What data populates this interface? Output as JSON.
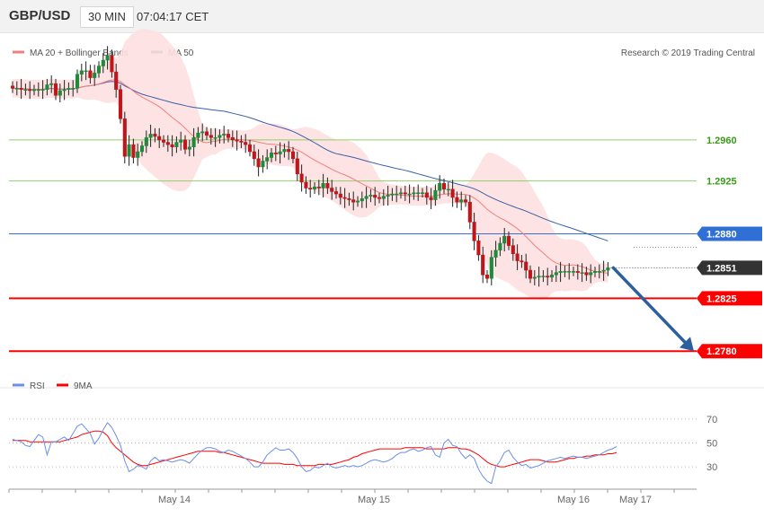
{
  "header": {
    "pair": "GBP/USD",
    "timeframe": "30 MIN",
    "time": "07:04:17 CET"
  },
  "legend": {
    "ma20_bb": "MA 20 + Bollinger Bands",
    "ma50": "MA 50",
    "research": "Research © 2019 Trading Central",
    "rsi": "RSI",
    "rsi_ma": "9MA"
  },
  "colors": {
    "ma20": "#f08080",
    "bands": "#fde0e0",
    "ma50": "#3a5fa8",
    "support": "#ff0000",
    "resistance": "#8fd06a",
    "pivot": "#3a6fd0",
    "arrow": "#2b5f9e",
    "rsi": "#6a8fe8",
    "rsi_ma": "#ff0000"
  },
  "chart_data": [
    {
      "type": "candlestick",
      "title": "GBP/USD",
      "timeframe": "30 MIN",
      "x_ticks": [
        "May 14",
        "May 15",
        "May 16",
        "May 17"
      ],
      "y_unit": "price",
      "ylim": [
        1.2758,
        1.3015
      ],
      "last_price": 1.2851,
      "series": [
        {
          "name": "MA 20 + Bollinger Bands"
        },
        {
          "name": "MA 50"
        }
      ],
      "levels": [
        {
          "value": 1.296,
          "label": "1.2960",
          "kind": "resistance"
        },
        {
          "value": 1.2925,
          "label": "1.2925",
          "kind": "resistance"
        },
        {
          "value": 1.288,
          "label": "1.2880",
          "kind": "pivot"
        },
        {
          "value": 1.2851,
          "label": "1.2851",
          "kind": "last"
        },
        {
          "value": 1.2825,
          "label": "1.2825",
          "kind": "support"
        },
        {
          "value": 1.278,
          "label": "1.2780",
          "kind": "support"
        }
      ],
      "forecast_arrow": {
        "from": 1.2851,
        "to": 1.278
      },
      "close": [
        1.3004,
        1.3004,
        1.3003,
        1.3003,
        1.3002,
        1.3003,
        1.3003,
        1.3003,
        1.3007,
        1.3008,
        1.2998,
        1.3002,
        1.3003,
        1.3004,
        1.3004,
        1.3016,
        1.3019,
        1.3019,
        1.3013,
        1.3017,
        1.3023,
        1.3028,
        1.3032,
        1.3018,
        1.3003,
        1.2978,
        1.2946,
        1.2956,
        1.2945,
        1.295,
        1.2955,
        1.2962,
        1.2965,
        1.2963,
        1.296,
        1.2958,
        1.2956,
        1.2954,
        1.2958,
        1.296,
        1.2952,
        1.2954,
        1.2962,
        1.2966,
        1.2967,
        1.2964,
        1.2962,
        1.2962,
        1.2964,
        1.2965,
        1.2962,
        1.296,
        1.2959,
        1.2958,
        1.2956,
        1.295,
        1.2944,
        1.2937,
        1.2942,
        1.2945,
        1.2949,
        1.2948,
        1.295,
        1.2952,
        1.295,
        1.2944,
        1.2931,
        1.2924,
        1.2919,
        1.2918,
        1.292,
        1.2919,
        1.2923,
        1.2919,
        1.2916,
        1.2914,
        1.2911,
        1.291,
        1.2909,
        1.2907,
        1.2908,
        1.291,
        1.2912,
        1.2913,
        1.2911,
        1.291,
        1.2912,
        1.2913,
        1.2914,
        1.2914,
        1.2915,
        1.2914,
        1.2914,
        1.2915,
        1.2915,
        1.2915,
        1.2911,
        1.2909,
        1.2917,
        1.2923,
        1.2918,
        1.2918,
        1.2911,
        1.2907,
        1.2909,
        1.2907,
        1.289,
        1.2874,
        1.2862,
        1.2845,
        1.2842,
        1.286,
        1.2866,
        1.2872,
        1.2878,
        1.287,
        1.2863,
        1.2857,
        1.2856,
        1.2849,
        1.2842,
        1.2843,
        1.2844,
        1.2844,
        1.2843,
        1.2845,
        1.2847,
        1.2848,
        1.2848,
        1.2848,
        1.2848,
        1.2847,
        1.2847,
        1.2845,
        1.2847,
        1.2848,
        1.2848,
        1.2849,
        1.2851
      ]
    },
    {
      "type": "line",
      "x_ticks": [
        "May 14",
        "May 15",
        "May 16",
        "May 17"
      ],
      "ylim": [
        15,
        85
      ],
      "y_ticks": [
        30,
        50,
        70
      ],
      "series": [
        {
          "name": "RSI",
          "values": [
            53,
            52,
            51,
            48,
            47,
            52,
            57,
            55,
            40,
            51,
            51,
            53,
            55,
            52,
            58,
            64,
            66,
            62,
            58,
            49,
            54,
            61,
            67,
            63,
            56,
            48,
            35,
            26,
            28,
            31,
            30,
            28,
            35,
            38,
            35,
            36,
            35,
            34,
            35,
            36,
            35,
            33,
            37,
            41,
            44,
            46,
            46,
            45,
            43,
            42,
            44,
            43,
            41,
            39,
            37,
            34,
            30,
            30,
            34,
            40,
            43,
            46,
            44,
            44,
            45,
            42,
            37,
            30,
            26,
            27,
            30,
            29,
            31,
            33,
            30,
            29,
            30,
            31,
            30,
            31,
            30,
            31,
            33,
            35,
            36,
            35,
            34,
            35,
            37,
            40,
            42,
            42,
            44,
            45,
            43,
            44,
            46,
            47,
            40,
            38,
            50,
            53,
            48,
            47,
            41,
            37,
            40,
            37,
            28,
            22,
            18,
            16,
            30,
            35,
            42,
            44,
            38,
            34,
            31,
            32,
            29,
            30,
            31,
            33,
            35,
            36,
            37,
            38,
            37,
            38,
            39,
            38,
            38,
            37,
            38,
            39,
            40,
            42,
            44,
            45,
            47
          ]
        },
        {
          "name": "9MA",
          "values": [
            52,
            52,
            52,
            52,
            51,
            51,
            51,
            51,
            51,
            51,
            51,
            51,
            52,
            53,
            54,
            55,
            57,
            58,
            59,
            60,
            60,
            59,
            56,
            50,
            46,
            43,
            40,
            37,
            34,
            32,
            31,
            31,
            32,
            33,
            34,
            35,
            36,
            37,
            38,
            39,
            40,
            41,
            42,
            43,
            43,
            43,
            43,
            43,
            42,
            42,
            41,
            40,
            39,
            38,
            37,
            36,
            35,
            34,
            33,
            33,
            33,
            33,
            33,
            32,
            32,
            32,
            31,
            31,
            31,
            31,
            31,
            32,
            32,
            32,
            32,
            33,
            34,
            35,
            36,
            38,
            39,
            41,
            42,
            43,
            44,
            45,
            45,
            45,
            45,
            45,
            45,
            46,
            46,
            46,
            46,
            46,
            45,
            45,
            45,
            45,
            45,
            46,
            46,
            46,
            45,
            45,
            44,
            42,
            40,
            37,
            34,
            32,
            31,
            30,
            30,
            31,
            32,
            33,
            34,
            35,
            36,
            36,
            36,
            35,
            34,
            34,
            34,
            35,
            36,
            37,
            37,
            38,
            38,
            39,
            39,
            40,
            40,
            40,
            41,
            41,
            42
          ]
        }
      ]
    }
  ]
}
